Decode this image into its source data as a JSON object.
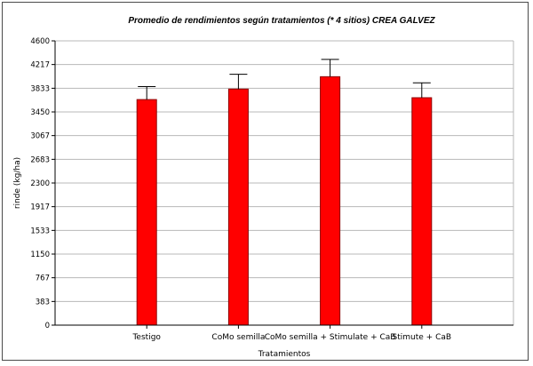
{
  "chart_data": {
    "type": "bar",
    "title": "Promedio de rendimientos según tratamientos (* 4 sitios) CREA GALVEZ",
    "xlabel": "Tratamientos",
    "ylabel": "rinde (kg/ha)",
    "categories": [
      "Testigo",
      "CoMo semilla",
      "CoMo semilla + Stimulate + CaB",
      "Stimute + CaB"
    ],
    "series": [
      {
        "values": [
          3650,
          3820,
          4020,
          3680
        ],
        "error_upper": [
          3860,
          4060,
          4300,
          3920
        ]
      }
    ],
    "yticks": [
      "0",
      "383",
      "767",
      "1150",
      "1533",
      "1917",
      "2300",
      "2683",
      "3067",
      "3450",
      "3833",
      "4217",
      "4600"
    ],
    "ylim": [
      0,
      4600
    ],
    "grid": true,
    "bar_color": "#ff0000",
    "bar_edge_color": "#8b0000"
  }
}
